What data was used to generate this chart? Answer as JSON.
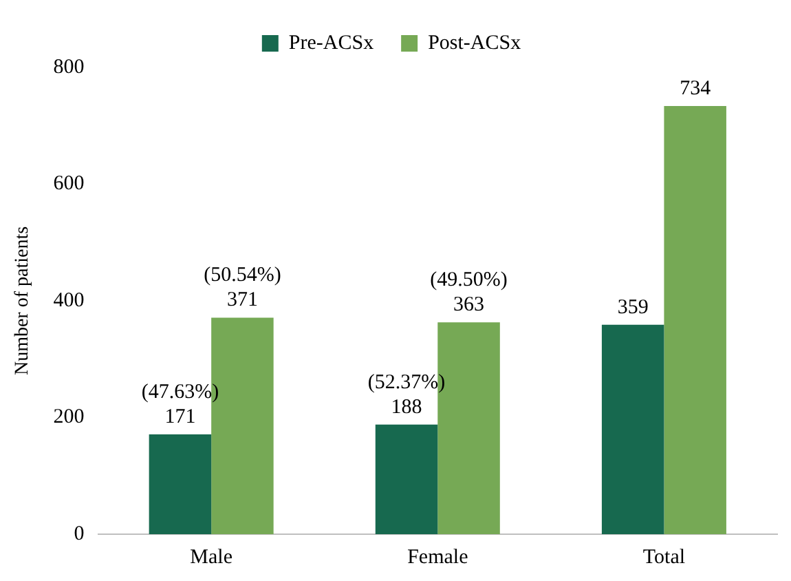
{
  "chart_data": {
    "type": "bar",
    "ylabel": "Number of patients",
    "categories": [
      "Male",
      "Female",
      "Total"
    ],
    "series": [
      {
        "name": "Pre-ACSx",
        "color": "#17694f",
        "values": [
          171,
          188,
          359
        ],
        "value_labels": [
          "(47.63%)\n171",
          "(52.37%)\n188",
          "359"
        ]
      },
      {
        "name": "Post-ACSx",
        "color": "#76a955",
        "values": [
          371,
          363,
          734
        ],
        "value_labels": [
          "(50.54%)\n371",
          "(49.50%)\n363",
          "734"
        ]
      }
    ],
    "ylim": [
      0,
      800
    ],
    "yticks": [
      0,
      200,
      400,
      600,
      800
    ],
    "grid": false,
    "legend": "top"
  }
}
